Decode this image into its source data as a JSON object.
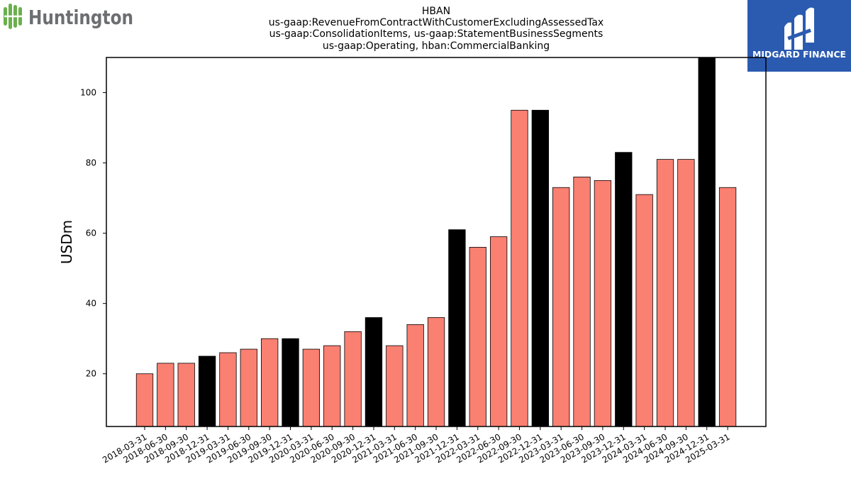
{
  "brand": {
    "left_logo_text": "Huntington",
    "right_logo_text": "MIDGARD FINANCE",
    "left_logo_color": "#6ab04c",
    "left_text_color": "#6d6e71",
    "right_logo_bg": "#2b5bb0"
  },
  "chart_data": {
    "type": "bar",
    "title_lines": [
      "HBAN",
      "us-gaap:RevenueFromContractWithCustomerExcludingAssessedTax",
      "us-gaap:ConsolidationItems, us-gaap:StatementBusinessSegments",
      "us-gaap:Operating, hban:CommercialBanking"
    ],
    "xlabel": "",
    "ylabel": "USDm",
    "ylim": [
      5,
      110
    ],
    "yticks": [
      20,
      40,
      60,
      80,
      100
    ],
    "categories": [
      "2018-03-31",
      "2018-06-30",
      "2018-09-30",
      "2018-12-31",
      "2019-03-31",
      "2019-06-30",
      "2019-09-30",
      "2019-12-31",
      "2020-03-31",
      "2020-06-30",
      "2020-09-30",
      "2020-12-31",
      "2021-03-31",
      "2021-06-30",
      "2021-09-30",
      "2021-12-31",
      "2022-03-31",
      "2022-06-30",
      "2022-09-30",
      "2022-12-31",
      "2023-03-31",
      "2023-06-30",
      "2023-09-30",
      "2023-12-31",
      "2024-03-31",
      "2024-06-30",
      "2024-09-30",
      "2024-12-31",
      "2025-03-31"
    ],
    "values": [
      20,
      23,
      23,
      25,
      26,
      27,
      30,
      30,
      27,
      28,
      32,
      36,
      28,
      34,
      36,
      61,
      56,
      59,
      95,
      95,
      73,
      76,
      75,
      83,
      71,
      81,
      81,
      110,
      73
    ],
    "colors": {
      "quarter": "#fa8072",
      "year_end": "#000000",
      "edge": "#000000"
    },
    "year_end_categories": [
      "2018-12-31",
      "2019-12-31",
      "2020-12-31",
      "2021-12-31",
      "2022-12-31",
      "2023-12-31",
      "2024-12-31"
    ],
    "grid": false,
    "legend": "none"
  }
}
